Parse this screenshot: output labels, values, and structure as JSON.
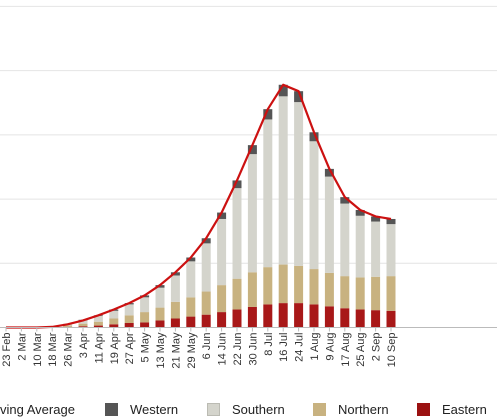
{
  "chart_data": {
    "type": "bar",
    "stacked": true,
    "x_tick_labels": [
      "23 Feb",
      "2 Mar",
      "10 Mar",
      "18 Mar",
      "26 Mar",
      "3 Apr",
      "11 Apr",
      "19 Apr",
      "27 Apr",
      "5 May",
      "13 May",
      "21 May",
      "29 May",
      "6 Jun",
      "14 Jun",
      "22 Jun",
      "30 Jun",
      "8 Jul",
      "16 Jul",
      "24 Jul",
      "1 Aug",
      "9 Aug",
      "17 Aug",
      "25 Aug",
      "2 Sep",
      "10 Sep"
    ],
    "grid": true,
    "legend_position": "bottom",
    "legend": [
      {
        "label": "Moving Average",
        "shown_text": "ving Average",
        "color": "#cc1111",
        "kind": "line"
      },
      {
        "label": "Western",
        "color": "#555555",
        "kind": "box"
      },
      {
        "label": "Southern",
        "color": "#d4d4cc",
        "kind": "box"
      },
      {
        "label": "Northern",
        "color": "#c8b280",
        "kind": "box"
      },
      {
        "label": "Eastern",
        "color": "#9b1111",
        "kind": "box"
      }
    ],
    "series": [
      {
        "name": "Eastern",
        "color": "#a81818",
        "weekly_values": [
          0,
          0,
          0,
          0,
          1,
          2,
          3,
          5,
          7,
          8,
          11,
          14,
          17,
          20,
          24,
          28,
          32,
          36,
          38,
          38,
          36,
          33,
          30,
          28,
          27,
          26
        ]
      },
      {
        "name": "Northern",
        "color": "#c8b280",
        "weekly_values": [
          0,
          0,
          0,
          0,
          2,
          4,
          6,
          9,
          12,
          16,
          20,
          26,
          30,
          36,
          42,
          48,
          54,
          58,
          60,
          58,
          55,
          52,
          50,
          50,
          52,
          54
        ]
      },
      {
        "name": "Southern",
        "color": "#d4d4cc",
        "weekly_values": [
          0,
          0,
          0,
          1,
          3,
          5,
          9,
          12,
          17,
          23,
          31,
          41,
          56,
          75,
          103,
          141,
          184,
          230,
          262,
          255,
          199,
          150,
          113,
          96,
          86,
          81
        ]
      },
      {
        "name": "Western",
        "color": "#555555",
        "weekly_values": [
          0,
          0,
          0,
          0,
          0,
          1,
          1,
          2,
          2,
          3,
          4,
          5,
          6,
          8,
          10,
          12,
          14,
          16,
          18,
          17,
          14,
          12,
          10,
          9,
          8,
          8
        ]
      }
    ],
    "moving_average": {
      "name": "Moving Average",
      "color": "#cc1111",
      "weekly_values": [
        0,
        0,
        0,
        1,
        5,
        11,
        19,
        28,
        38,
        50,
        66,
        86,
        109,
        139,
        179,
        229,
        284,
        340,
        378,
        368,
        304,
        247,
        203,
        183,
        173,
        169
      ]
    },
    "ylim": [
      0,
      510
    ]
  }
}
